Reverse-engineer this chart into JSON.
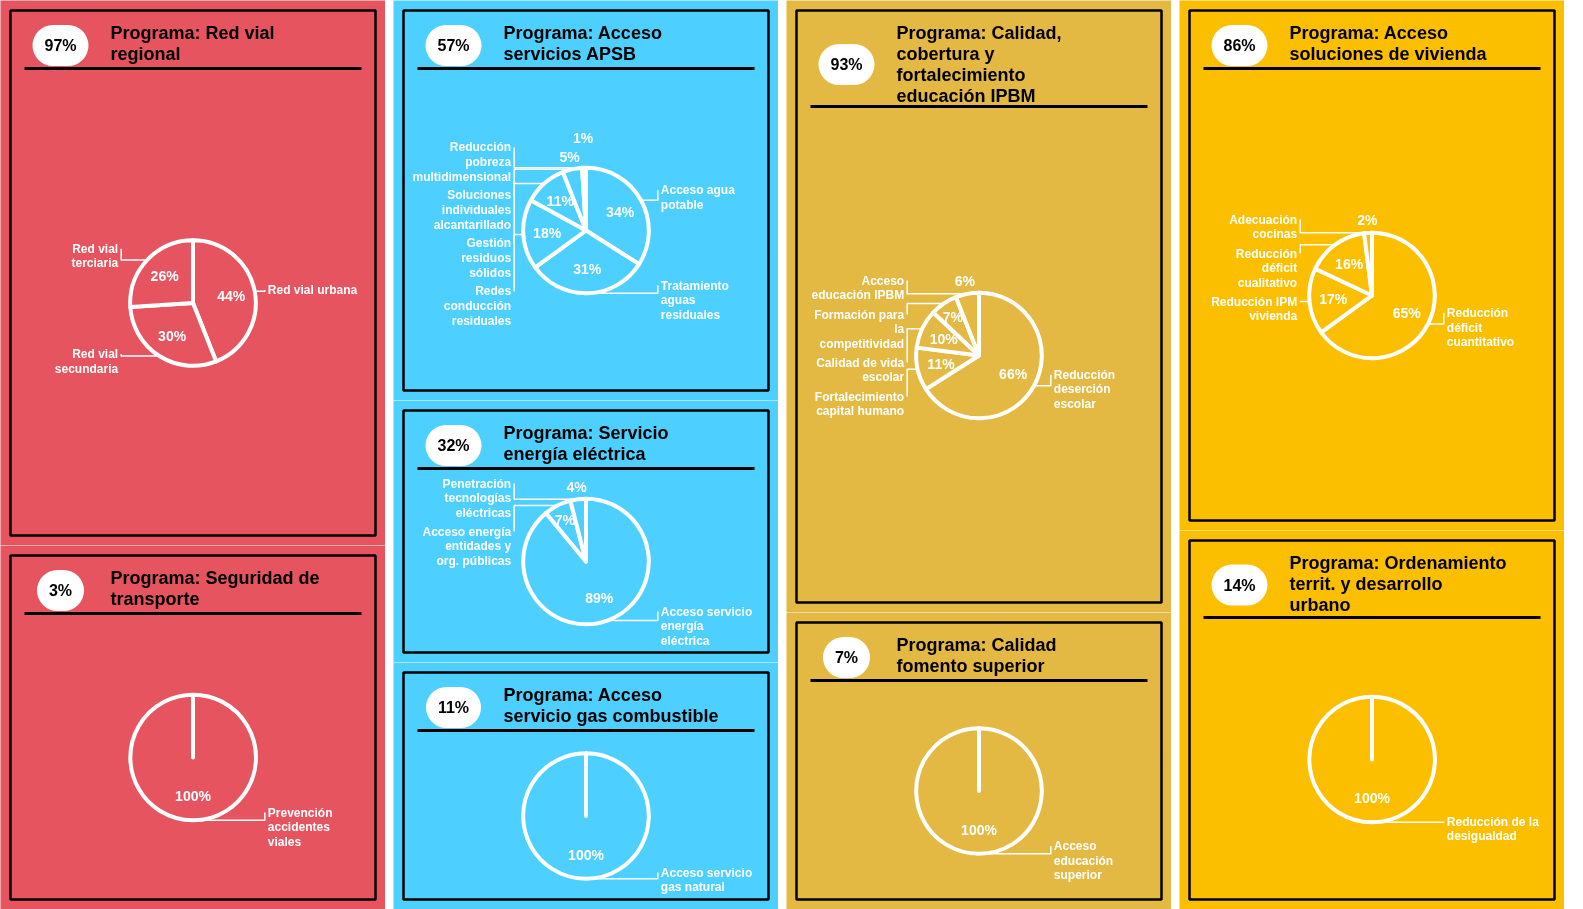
{
  "chart_data": [
    {
      "type": "pie",
      "title": "Programa: Red vial regional",
      "annotations": [
        "97%"
      ],
      "categories": [
        "Red vial urbana",
        "Red vial secundaria",
        "Red vial terciaria"
      ],
      "values": [
        44,
        30,
        26
      ],
      "value_labels": [
        "44%",
        "30%",
        "26%"
      ],
      "colors": [
        "#e5545f",
        "#e5545f",
        "#e5545f"
      ]
    },
    {
      "type": "pie",
      "title": "Programa: Seguridad de transporte",
      "annotations": [
        "3%"
      ],
      "categories": [
        "Prevención accidentes viales"
      ],
      "values": [
        100
      ],
      "value_labels": [
        "100%"
      ],
      "colors": [
        "#e5545f"
      ]
    },
    {
      "type": "pie",
      "title": "Programa: Acceso servicios APSB",
      "annotations": [
        "57%"
      ],
      "categories": [
        "Acceso agua potable",
        "Tratamiento aguas residuales",
        "Redes conducción residuales",
        "Gestión residuos sólidos",
        "Soluciones individuales alcantarillado",
        "Reducción pobreza multidimensional"
      ],
      "values": [
        34,
        31,
        18,
        11,
        5,
        1
      ],
      "value_labels": [
        "34%",
        "31%",
        "18%",
        "11%",
        "5%",
        "1%"
      ],
      "colors": [
        "#4dd0ff",
        "#4dd0ff",
        "#4dd0ff",
        "#4dd0ff",
        "#4dd0ff",
        "#4dd0ff"
      ]
    },
    {
      "type": "pie",
      "title": "Programa: Servicio energía eléctrica",
      "annotations": [
        "32%"
      ],
      "categories": [
        "Acceso servicio energía eléctrica",
        "Acceso energía entidades y org. públicas",
        "Penetración tecnologías eléctricas"
      ],
      "values": [
        89,
        7,
        4
      ],
      "value_labels": [
        "89%",
        "7%",
        "4%"
      ],
      "colors": [
        "#4dd0ff",
        "#4dd0ff",
        "#4dd0ff"
      ]
    },
    {
      "type": "pie",
      "title": "Programa: Acceso servicio gas combustible",
      "annotations": [
        "11%"
      ],
      "categories": [
        "Acceso servicio gas natural"
      ],
      "values": [
        100
      ],
      "value_labels": [
        "100%"
      ],
      "colors": [
        "#4dd0ff"
      ]
    },
    {
      "type": "pie",
      "title": "Programa: Calidad, cobertura y fortalecimiento educación IPBM",
      "annotations": [
        "93%"
      ],
      "categories": [
        "Reducción deserción escolar",
        "Fortalecimiento capital humano",
        "Calidad de vida escolar",
        "Formación para la competitividad",
        "Acceso educación IPBM"
      ],
      "values": [
        66,
        11,
        10,
        7,
        6
      ],
      "value_labels": [
        "66%",
        "11%",
        "10%",
        "7%",
        "6%"
      ],
      "colors": [
        "#e3b943",
        "#e3b943",
        "#e3b943",
        "#e3b943",
        "#e3b943"
      ]
    },
    {
      "type": "pie",
      "title": "Programa: Calidad fomento superior",
      "annotations": [
        "7%"
      ],
      "categories": [
        "Acceso educación superior"
      ],
      "values": [
        100
      ],
      "value_labels": [
        "100%"
      ],
      "colors": [
        "#e3b943"
      ]
    },
    {
      "type": "pie",
      "title": "Programa: Acceso soluciones de vivienda",
      "annotations": [
        "86%"
      ],
      "categories": [
        "Reducción déficit cuantitativo",
        "Reducción IPM vivienda",
        "Reducción déficit cualitativo",
        "Adecuación cocinas"
      ],
      "values": [
        65,
        17,
        16,
        2
      ],
      "value_labels": [
        "65%",
        "17%",
        "16%",
        "2%"
      ],
      "colors": [
        "#fcbf00",
        "#fcbf00",
        "#fcbf00",
        "#fcbf00"
      ]
    },
    {
      "type": "pie",
      "title": "Programa: Ordenamiento territ. y desarrollo urbano",
      "annotations": [
        "14%"
      ],
      "categories": [
        "Reducción de la desigualdad"
      ],
      "values": [
        100
      ],
      "value_labels": [
        "100%"
      ],
      "colors": [
        "#fcbf00"
      ]
    }
  ]
}
